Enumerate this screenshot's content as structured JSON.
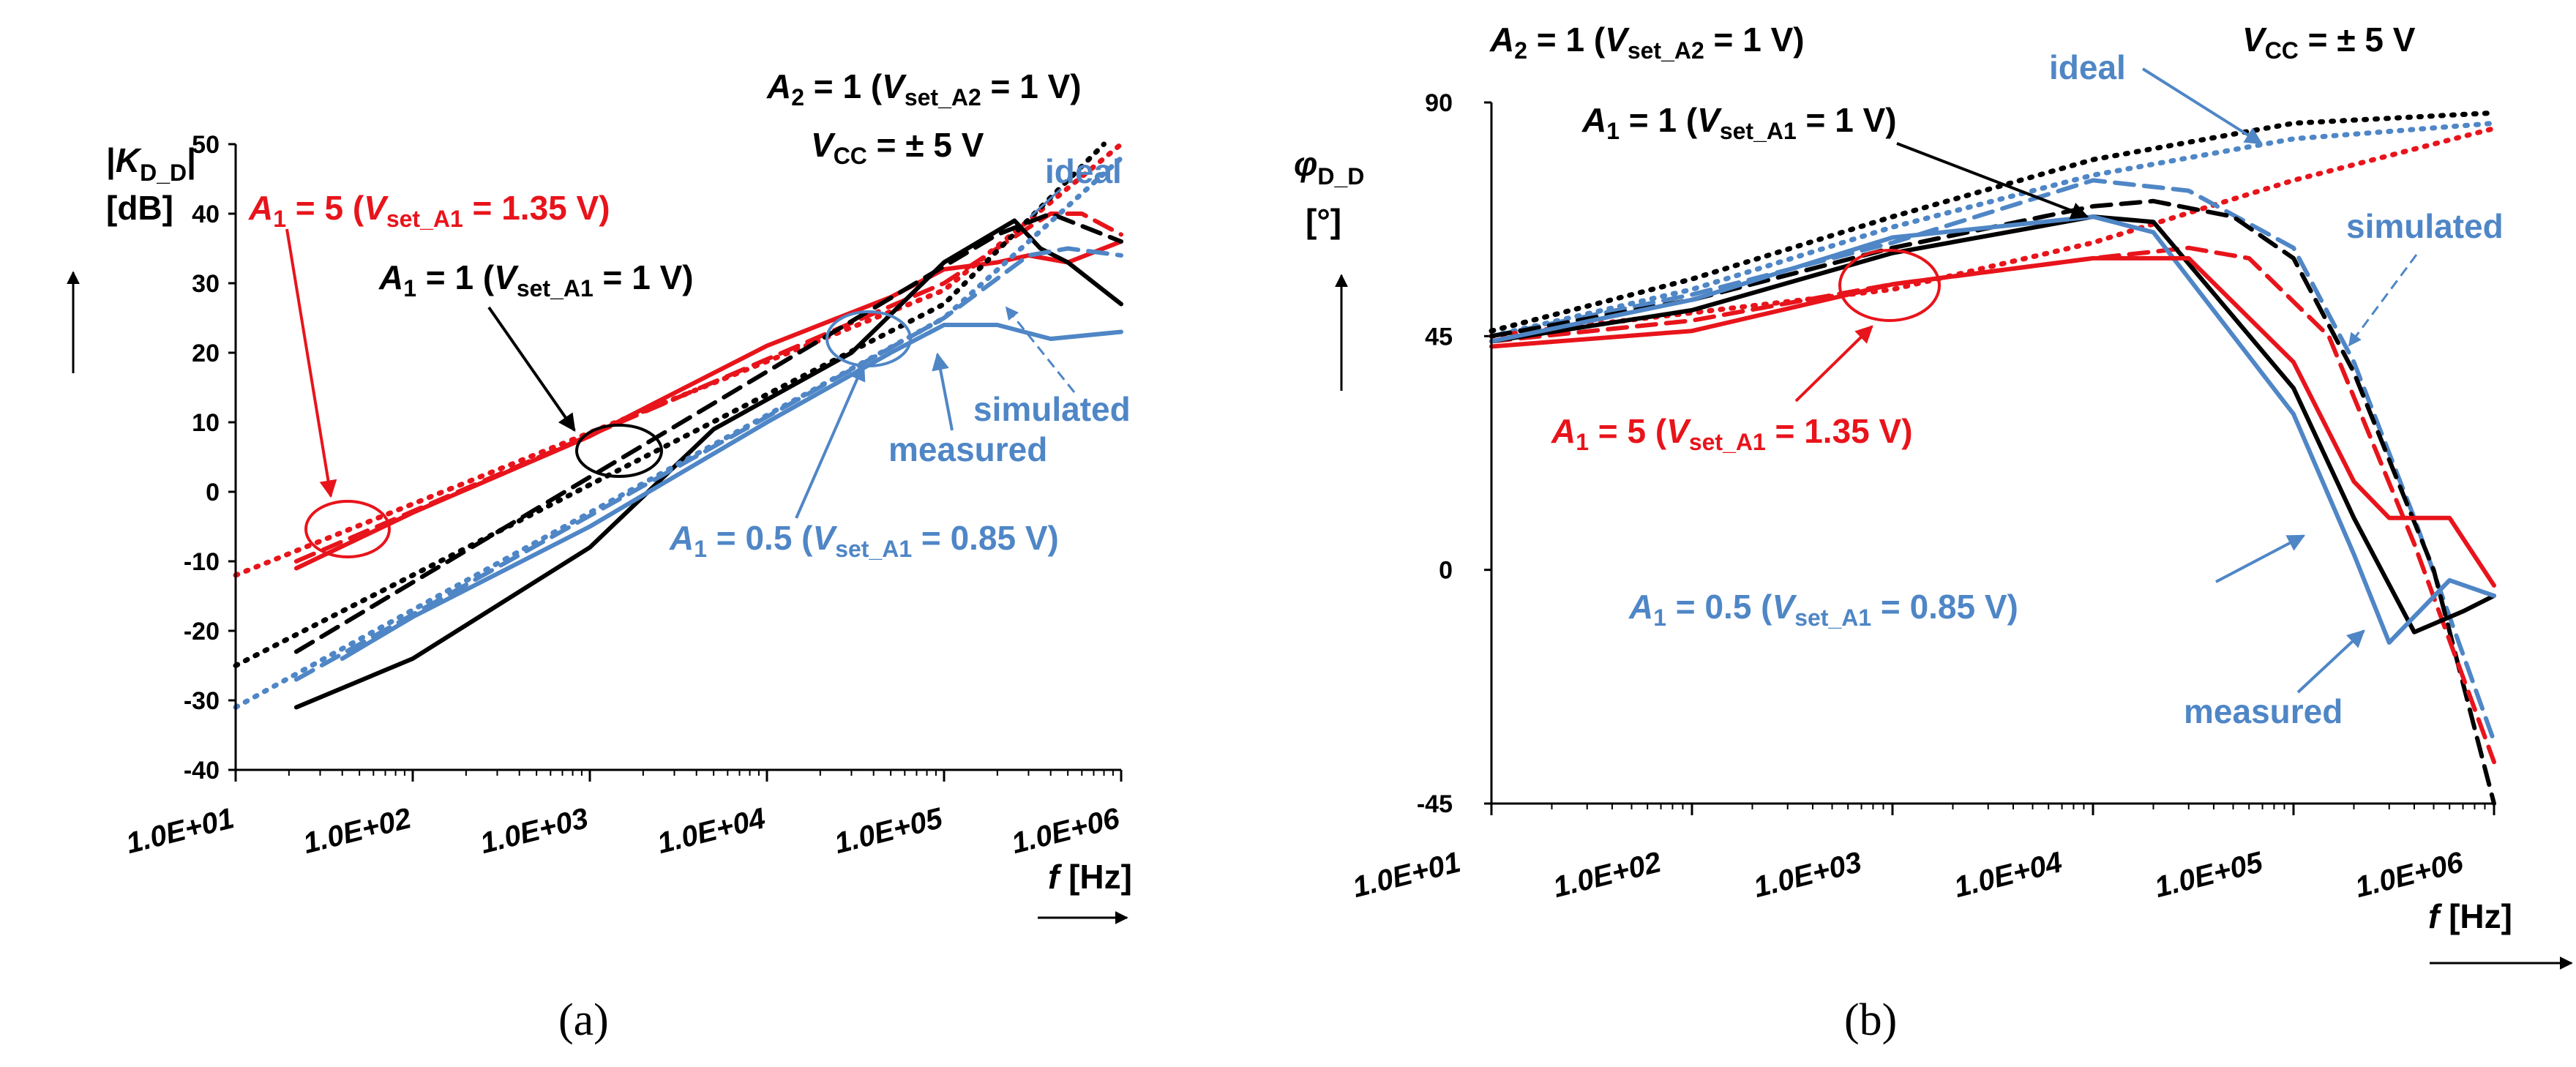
{
  "chart_data": [
    {
      "type": "line",
      "panel_label": "(a)",
      "x_scale": "log",
      "xlim": [
        10,
        1000000
      ],
      "x_ticks": [
        "1.0E+01",
        "1.0E+02",
        "1.0E+03",
        "1.0E+04",
        "1.0E+05",
        "1.0E+06"
      ],
      "x_tick_values": [
        10,
        100,
        1000,
        10000,
        100000,
        1000000
      ],
      "xlabel": "f [Hz]",
      "ylabel": "|KD_D| [dB]",
      "ylim": [
        -40,
        50
      ],
      "y_ticks": [
        "-40",
        "-30",
        "-20",
        "-10",
        "0",
        "10",
        "20",
        "30",
        "40",
        "50"
      ],
      "y_tick_values": [
        -40,
        -30,
        -20,
        -10,
        0,
        10,
        20,
        30,
        40,
        50
      ],
      "annotations": {
        "header_a2": "A2 = 1 (Vset_A2 = 1 V)",
        "header_vcc": "VCC = ± 5 V",
        "a1_5": "A1 = 5 (Vset_A1 = 1.35 V)",
        "a1_1": "A1 = 1 (Vset_A1 = 1 V)",
        "a1_05": "A1 = 0.5 (Vset_A1 = 0.85 V)",
        "ideal": "ideal",
        "simulated": "simulated",
        "measured": "measured"
      },
      "series": [
        {
          "name": "A1 = 5 ideal",
          "color": "#e8141b",
          "style": "dotted",
          "x": [
            10,
            100000,
            1000000
          ],
          "y": [
            -12,
            29,
            50
          ]
        },
        {
          "name": "A1 = 5 simulated",
          "color": "#e8141b",
          "style": "dashed",
          "x": [
            22,
            100000,
            300000,
            400000,
            600000,
            1000000
          ],
          "y": [
            -10,
            30,
            38,
            40,
            40,
            37
          ]
        },
        {
          "name": "A1 = 5 measured",
          "color": "#e8141b",
          "style": "solid",
          "x": [
            22,
            100,
            1000,
            10000,
            50000,
            100000,
            200000,
            300000,
            500000,
            1000000
          ],
          "y": [
            -11,
            -3,
            8,
            21,
            28,
            32,
            33,
            34,
            33,
            36
          ]
        },
        {
          "name": "A1 = 1 ideal",
          "color": "#000000",
          "style": "dotted",
          "x": [
            10,
            100000,
            800000
          ],
          "y": [
            -25,
            27,
            50
          ]
        },
        {
          "name": "A1 = 1 simulated",
          "color": "#000000",
          "style": "dashed",
          "x": [
            22,
            200000,
            400000,
            1000000
          ],
          "y": [
            -23,
            37,
            40,
            36
          ]
        },
        {
          "name": "A1 = 1 measured",
          "color": "#000000",
          "style": "solid",
          "x": [
            22,
            100,
            1000,
            5000,
            30000,
            100000,
            250000,
            350000,
            500000,
            1000000
          ],
          "y": [
            -31,
            -24,
            -8,
            9,
            20,
            33,
            39,
            35,
            33,
            27
          ]
        },
        {
          "name": "A1 = 0.5 ideal",
          "color": "#4f86c6",
          "style": "dotted",
          "x": [
            10,
            100000,
            1000000
          ],
          "y": [
            -31,
            25,
            48
          ]
        },
        {
          "name": "A1 = 0.5 simulated",
          "color": "#4f86c6",
          "style": "dashed",
          "x": [
            22,
            100000,
            300000,
            500000,
            1000000
          ],
          "y": [
            -27,
            25,
            34,
            35,
            34
          ]
        },
        {
          "name": "A1 = 0.5 measured",
          "color": "#4f86c6",
          "style": "solid",
          "x": [
            40,
            100,
            1000,
            10000,
            50000,
            100000,
            200000,
            400000,
            1000000
          ],
          "y": [
            -24,
            -18,
            -5,
            10,
            20,
            24,
            24,
            22,
            23
          ]
        }
      ]
    },
    {
      "type": "line",
      "panel_label": "(b)",
      "x_scale": "log",
      "xlim": [
        10,
        1000000
      ],
      "x_ticks": [
        "1.0E+01",
        "1.0E+02",
        "1.0E+03",
        "1.0E+04",
        "1.0E+05",
        "1.0E+06"
      ],
      "x_tick_values": [
        10,
        100,
        1000,
        10000,
        100000,
        1000000
      ],
      "xlabel": "f [Hz]",
      "ylabel": "φD_D [°]",
      "ylim": [
        -45,
        90
      ],
      "y_ticks": [
        "-45",
        "0",
        "45",
        "90"
      ],
      "y_tick_values": [
        -45,
        0,
        45,
        90
      ],
      "annotations": {
        "header_a2": "A2 = 1 (Vset_A2 = 1 V)",
        "header_vcc": "VCC = ± 5 V",
        "ideal": "ideal",
        "a1_1": "A1 = 1 (Vset_A1 = 1 V)",
        "simulated": "simulated",
        "a1_5": "A1 = 5 (Vset_A1 = 1.35 V)",
        "a1_05": "A1 = 0.5 (Vset_A1 = 0.85 V)",
        "measured": "measured"
      },
      "series": [
        {
          "name": "A1 = 1 ideal",
          "color": "#000000",
          "style": "dotted",
          "x": [
            10,
            100,
            1000,
            10000,
            100000,
            1000000
          ],
          "y": [
            46,
            56,
            68,
            79,
            86,
            88
          ]
        },
        {
          "name": "A1 = 0.5 ideal",
          "color": "#4f86c6",
          "style": "dotted",
          "x": [
            10,
            100,
            1000,
            10000,
            100000,
            1000000
          ],
          "y": [
            45,
            54,
            66,
            76,
            83,
            86
          ]
        },
        {
          "name": "A1 = 5 ideal",
          "color": "#e8141b",
          "style": "dotted",
          "x": [
            10,
            1000,
            10000,
            100000,
            1000000
          ],
          "y": [
            45,
            54,
            63,
            75,
            85
          ]
        },
        {
          "name": "A1 = 0.5 simulated",
          "color": "#4f86c6",
          "style": "dashed",
          "x": [
            10,
            100,
            1000,
            10000,
            30000,
            100000,
            200000,
            400000,
            1000000
          ],
          "y": [
            45,
            53,
            63,
            75,
            73,
            62,
            40,
            10,
            -33
          ]
        },
        {
          "name": "A1 = 1 simulated",
          "color": "#000000",
          "style": "dashed",
          "x": [
            10,
            100,
            1000,
            10000,
            20000,
            50000,
            100000,
            200000,
            500000,
            1000000
          ],
          "y": [
            45,
            52,
            62,
            70,
            71,
            68,
            60,
            38,
            0,
            -45
          ]
        },
        {
          "name": "A1 = 5 simulated",
          "color": "#e8141b",
          "style": "dashed",
          "x": [
            10,
            100,
            1000,
            10000,
            30000,
            60000,
            150000,
            400000,
            1000000
          ],
          "y": [
            44,
            48,
            55,
            60,
            62,
            60,
            45,
            5,
            -37
          ]
        },
        {
          "name": "A1 = 1 measured",
          "color": "#000000",
          "style": "solid",
          "x": [
            10,
            100,
            1000,
            10000,
            20000,
            100000,
            200000,
            400000,
            700000,
            1000000
          ],
          "y": [
            44,
            50,
            61,
            68,
            67,
            35,
            10,
            -12,
            -8,
            -5
          ]
        },
        {
          "name": "A1 = 0.5 measured",
          "color": "#4f86c6",
          "style": "solid",
          "x": [
            10,
            100,
            1000,
            10000,
            20000,
            100000,
            200000,
            300000,
            600000,
            1000000
          ],
          "y": [
            44,
            52,
            64,
            68,
            65,
            30,
            3,
            -14,
            -2,
            -5
          ]
        },
        {
          "name": "A1 = 5 measured",
          "color": "#e8141b",
          "style": "solid",
          "x": [
            10,
            100,
            1000,
            10000,
            30000,
            100000,
            200000,
            300000,
            600000,
            1000000
          ],
          "y": [
            43,
            46,
            55,
            60,
            60,
            40,
            17,
            10,
            10,
            -3
          ]
        }
      ]
    }
  ]
}
